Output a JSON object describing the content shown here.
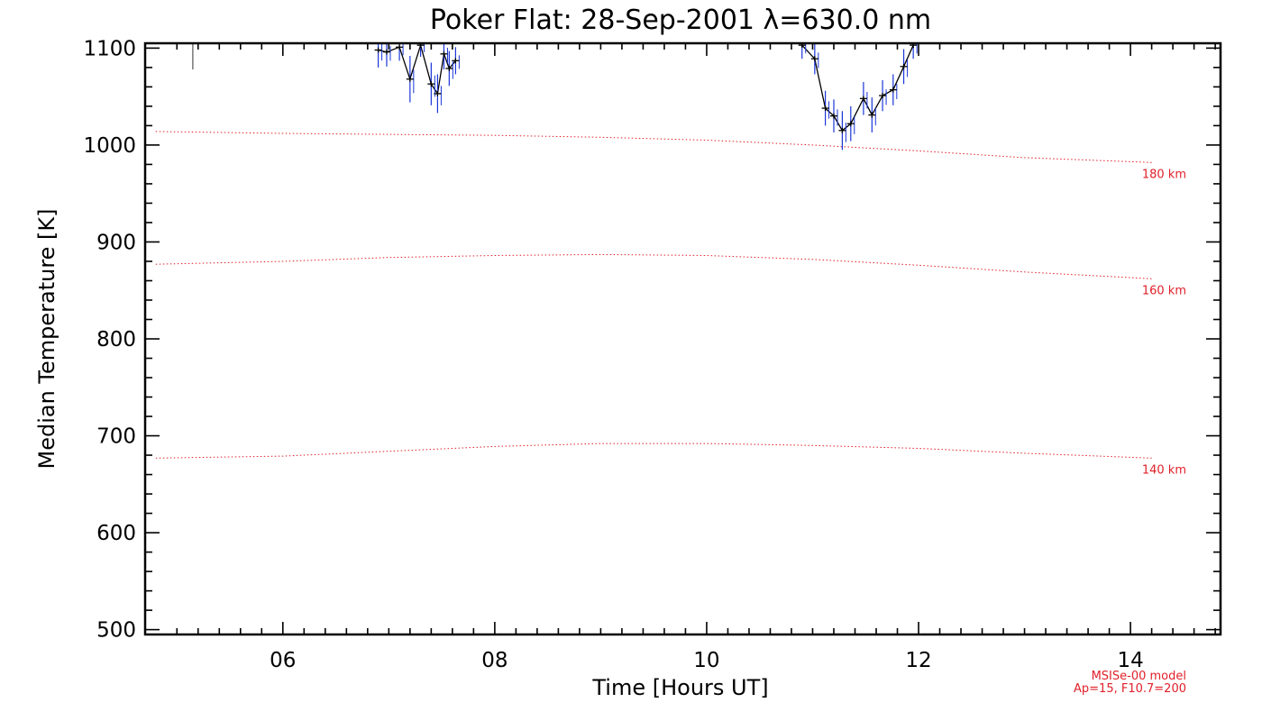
{
  "chart_data": {
    "type": "line",
    "title": "Poker Flat: 28-Sep-2001 λ=630.0 nm",
    "xlabel": "Time [Hours UT]",
    "ylabel": "Median Temperature [K]",
    "xlim": [
      4.7,
      14.85
    ],
    "ylim": [
      495,
      1105
    ],
    "x_ticks": [
      6,
      8,
      10,
      12,
      14
    ],
    "x_tick_labels": [
      "06",
      "08",
      "10",
      "12",
      "14"
    ],
    "y_ticks": [
      500,
      600,
      700,
      800,
      900,
      1000,
      1100
    ],
    "y_tick_labels": [
      "500",
      "600",
      "700",
      "800",
      "900",
      "1000",
      "1100"
    ],
    "model_note": [
      "MSISe-00 model",
      "Ap=15, F10.7=200"
    ],
    "model_series": [
      {
        "name": "180 km",
        "label": "180 km",
        "x": [
          4.8,
          6.0,
          7.0,
          8.0,
          9.0,
          10.0,
          11.0,
          12.0,
          13.0,
          14.2
        ],
        "values": [
          1014,
          1012,
          1011,
          1010,
          1008,
          1005,
          1000,
          994,
          987,
          982
        ]
      },
      {
        "name": "160 km",
        "label": "160 km",
        "x": [
          4.8,
          6.0,
          7.0,
          8.0,
          9.0,
          10.0,
          11.0,
          12.0,
          13.0,
          14.2
        ],
        "values": [
          877,
          880,
          884,
          886,
          887,
          886,
          882,
          876,
          869,
          862
        ]
      },
      {
        "name": "140 km",
        "label": "140 km",
        "x": [
          4.8,
          6.0,
          7.0,
          8.0,
          9.0,
          10.0,
          11.0,
          12.0,
          13.0,
          14.2
        ],
        "values": [
          677,
          679,
          684,
          689,
          692,
          692,
          690,
          687,
          682,
          677
        ]
      }
    ],
    "observed": [
      {
        "x": 6.9,
        "y": 1098,
        "err": 18
      },
      {
        "x": 6.98,
        "y": 1096,
        "err": 15
      },
      {
        "x": 7.1,
        "y": 1101,
        "err": 14
      },
      {
        "x": 7.2,
        "y": 1068,
        "err": 24
      },
      {
        "x": 7.3,
        "y": 1103,
        "err": 12
      },
      {
        "x": 7.4,
        "y": 1063,
        "err": 22
      },
      {
        "x": 7.46,
        "y": 1053,
        "err": 20
      },
      {
        "x": 7.52,
        "y": 1094,
        "err": 16
      },
      {
        "x": 7.57,
        "y": 1079,
        "err": 18
      },
      {
        "x": 7.63,
        "y": 1087,
        "err": 14
      },
      {
        "x": 10.9,
        "y": 1103,
        "err": 14
      },
      {
        "x": 11.02,
        "y": 1089,
        "err": 16
      },
      {
        "x": 11.12,
        "y": 1038,
        "err": 18
      },
      {
        "x": 11.2,
        "y": 1030,
        "err": 17
      },
      {
        "x": 11.28,
        "y": 1015,
        "err": 20
      },
      {
        "x": 11.36,
        "y": 1022,
        "err": 18
      },
      {
        "x": 11.48,
        "y": 1048,
        "err": 17
      },
      {
        "x": 11.56,
        "y": 1031,
        "err": 18
      },
      {
        "x": 11.66,
        "y": 1051,
        "err": 16
      },
      {
        "x": 11.76,
        "y": 1057,
        "err": 16
      },
      {
        "x": 11.86,
        "y": 1081,
        "err": 18
      },
      {
        "x": 11.95,
        "y": 1103,
        "err": 14
      }
    ],
    "outlier_bars": [
      {
        "x": 5.15,
        "y1": 1078,
        "y2": 1105
      }
    ],
    "colors": {
      "axes": "#000000",
      "model": "#e0202a",
      "observed": "#000000",
      "errorbar": "#1a35d8"
    }
  }
}
